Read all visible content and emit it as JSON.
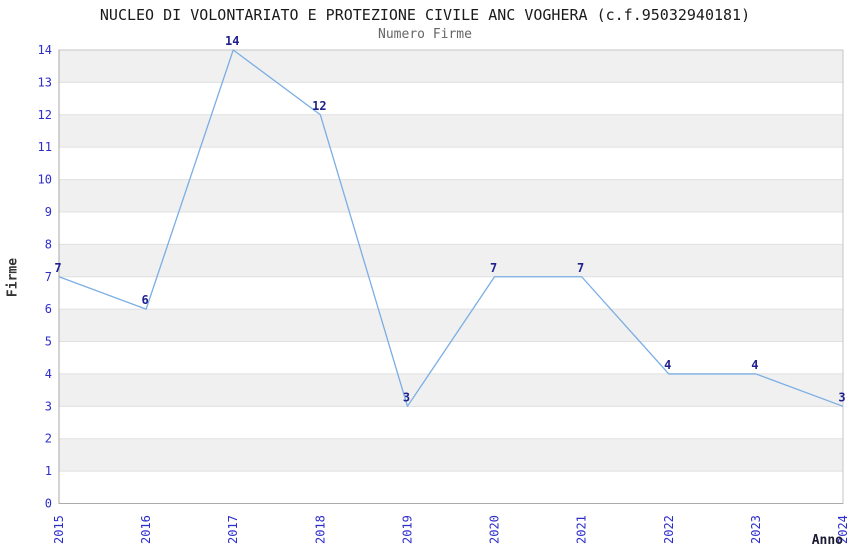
{
  "chart_data": {
    "type": "line",
    "title": "NUCLEO DI VOLONTARIATO E PROTEZIONE CIVILE ANC VOGHERA (c.f.95032940181)",
    "subtitle": "Numero Firme",
    "xlabel": "Anno",
    "ylabel": "Firme",
    "categories": [
      "2015",
      "2016",
      "2017",
      "2018",
      "2019",
      "2020",
      "2021",
      "2022",
      "2023",
      "2024"
    ],
    "values": [
      7,
      6,
      14,
      12,
      3,
      7,
      7,
      4,
      4,
      3
    ],
    "ylim": [
      0,
      14
    ],
    "ytick_step": 1,
    "grid": "horizontal-bands",
    "legend": "none",
    "colors": {
      "line": "#7aaee4",
      "tick_label": "#2d2dcc",
      "data_label": "#1f1f8f",
      "band_gray": "#f0f0f0",
      "band_white": "#ffffff",
      "gridline": "#e0e0e0",
      "plot_border": "#c6c6c6",
      "axis_line": "#aaaaaa"
    }
  }
}
